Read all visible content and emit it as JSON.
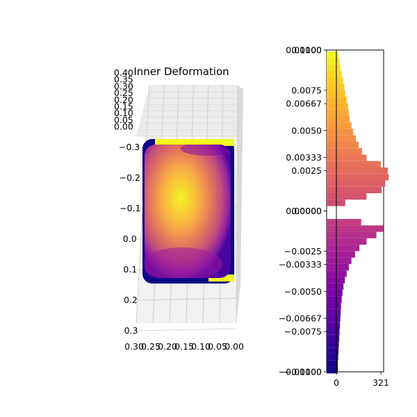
{
  "chart_data": [
    {
      "type": "scatter",
      "projection": "3d",
      "title": "Inner Deformation",
      "colormap": "plasma",
      "z_ticks": [
        "0.40",
        "0.35",
        "0.30",
        "0.25",
        "0.20",
        "0.15",
        "0.10",
        "0.05",
        "0.00"
      ],
      "y_ticks": [
        "−0.3",
        "−0.2",
        "−0.1",
        "0.0",
        "0.1",
        "0.2",
        "0.3"
      ],
      "x_ticks": [
        "0.30",
        "0.25",
        "0.20",
        "0.15",
        "0.10",
        "0.05",
        "0.00"
      ],
      "xlim": [
        0.0,
        0.3
      ],
      "ylim": [
        -0.3,
        0.3
      ],
      "zlim": [
        0.0,
        0.4
      ],
      "color_range": [
        -0.01,
        0.01
      ],
      "description_of_values": "deformation values colored from -0.01 (edges, dark blue) to 0.01 (center, yellow)"
    },
    {
      "type": "bar",
      "orientation": "horizontal",
      "y_tick_labels": [
        "0.0100",
        "0.01000",
        "0.0075",
        "0.00667",
        "0.0050",
        "0.00333",
        "0.0025",
        "0.0000",
        "0.00000",
        "−0.0025",
        "−0.00333",
        "−0.0050",
        "−0.00667",
        "−0.0075",
        "−0.0100",
        "−0.01000"
      ],
      "x_tick_labels": [
        "0",
        "321"
      ],
      "ylim": [
        -0.01,
        0.01
      ],
      "xlim": [
        0,
        321
      ],
      "bin_centers": [
        -0.0099,
        -0.0095,
        -0.0091,
        -0.0087,
        -0.0083,
        -0.0079,
        -0.0075,
        -0.0071,
        -0.0067,
        -0.0063,
        -0.0059,
        -0.0055,
        -0.0051,
        -0.0047,
        -0.0043,
        -0.0039,
        -0.0035,
        -0.0031,
        -0.0027,
        -0.0023,
        -0.0019,
        -0.0015,
        -0.0011,
        -0.0007,
        -0.0003,
        0.0001,
        0.0005,
        0.0009,
        0.0013,
        0.0017,
        0.0021,
        0.0025,
        0.0029,
        0.0033,
        0.0037,
        0.0041,
        0.0045,
        0.0049,
        0.0053,
        0.0057,
        0.0061,
        0.0065,
        0.0069,
        0.0073,
        0.0077,
        0.0081,
        0.0085,
        0.0089,
        0.0093,
        0.0097
      ],
      "counts": [
        8,
        8,
        10,
        12,
        14,
        16,
        18,
        20,
        22,
        24,
        26,
        30,
        34,
        40,
        48,
        58,
        70,
        85,
        105,
        130,
        170,
        225,
        265,
        140,
        0,
        0,
        50,
        170,
        255,
        275,
        295,
        290,
        250,
        170,
        145,
        125,
        110,
        95,
        85,
        75,
        70,
        65,
        58,
        50,
        45,
        38,
        30,
        24,
        18,
        12
      ]
    }
  ]
}
